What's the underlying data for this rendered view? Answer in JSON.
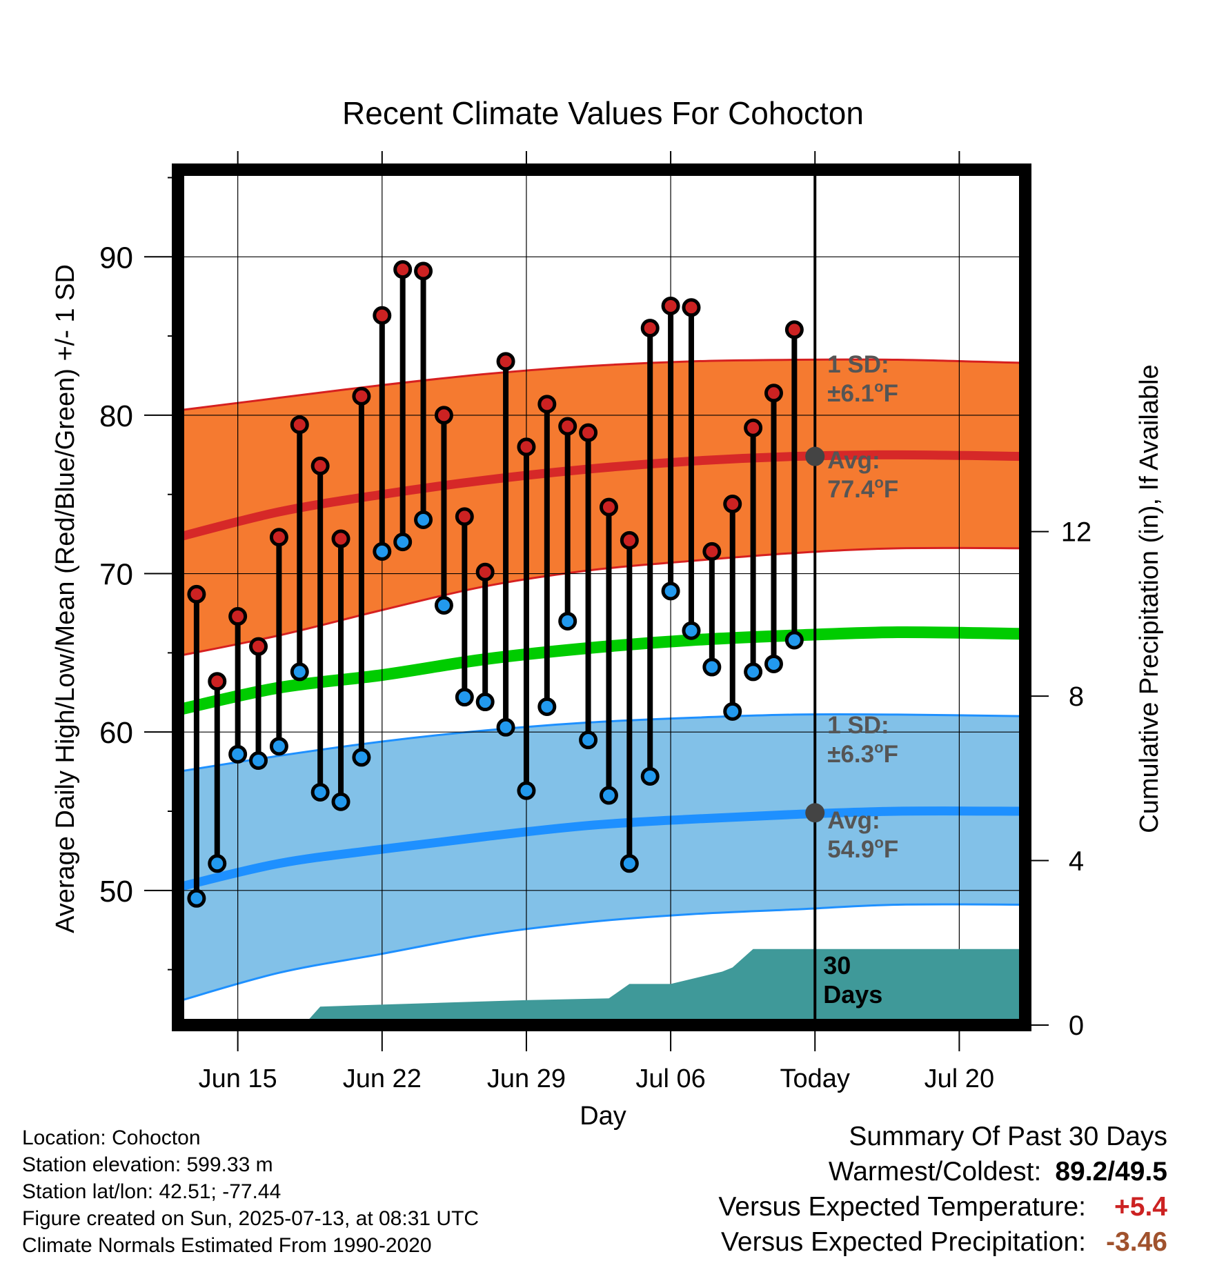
{
  "chart_data": {
    "type": "line",
    "title": "Recent Climate Values For Cohocton",
    "xlabel": "Day",
    "ylabel": "Average Daily High/Low/Mean (Red/Blue/Green) +/- 1 SD",
    "y2label": "Cumulative Precipitation (in), If Available",
    "ylim": [
      41.5,
      95.5
    ],
    "y_ticks": [
      50,
      60,
      70,
      80,
      90
    ],
    "y2lim": [
      0,
      20.8
    ],
    "y2_ticks": [
      0,
      4,
      8,
      12
    ],
    "xlim": [
      -0.9,
      40.2
    ],
    "x_ticks": [
      {
        "day": 2,
        "label": "Jun 15"
      },
      {
        "day": 9,
        "label": "Jun 22"
      },
      {
        "day": 16,
        "label": "Jun 29"
      },
      {
        "day": 23,
        "label": "Jul 06"
      },
      {
        "day": 30,
        "label": "Today"
      },
      {
        "day": 37,
        "label": "Jul 20"
      }
    ],
    "today_day": 30,
    "period_label": "30 Days",
    "grid": true,
    "days": [
      -1,
      0,
      1,
      2,
      3,
      4,
      5,
      6,
      7,
      8,
      9,
      10,
      11,
      12,
      13,
      14,
      15,
      16,
      17,
      18,
      19,
      20,
      21,
      22,
      23,
      24,
      25,
      26,
      27,
      28,
      29
    ],
    "series": [
      {
        "name": "High",
        "color": "#cc2222",
        "values": [
          68.7,
          63.2,
          67.3,
          65.4,
          72.3,
          79.4,
          76.8,
          72.2,
          81.2,
          86.3,
          89.2,
          89.1,
          80.0,
          73.6,
          70.1,
          83.4,
          78.0,
          80.7,
          79.3,
          78.9,
          74.2,
          72.1,
          85.5,
          86.9,
          86.8,
          71.4,
          74.4,
          79.2,
          81.4,
          85.4
        ],
        "days": [
          0,
          1,
          2,
          3,
          4,
          5,
          6,
          7,
          8,
          9,
          10,
          11,
          12,
          13,
          14,
          15,
          16,
          17,
          18,
          19,
          20,
          21,
          22,
          23,
          24,
          25,
          26,
          27,
          28,
          29
        ]
      },
      {
        "name": "Low",
        "color": "#2299ee",
        "values": [
          49.5,
          51.7,
          58.6,
          58.2,
          59.1,
          63.8,
          56.2,
          55.6,
          58.4,
          71.4,
          72.0,
          73.4,
          68.0,
          62.2,
          61.9,
          60.3,
          56.3,
          61.6,
          67.0,
          59.5,
          56.0,
          51.7,
          57.2,
          68.9,
          66.4,
          64.1,
          61.3,
          63.8,
          64.3,
          65.8
        ],
        "days": [
          0,
          1,
          2,
          3,
          4,
          5,
          6,
          7,
          8,
          9,
          10,
          11,
          12,
          13,
          14,
          15,
          16,
          17,
          18,
          19,
          20,
          21,
          22,
          23,
          24,
          25,
          26,
          27,
          28,
          29
        ]
      }
    ],
    "normals": {
      "x": [
        -0.9,
        4,
        9,
        14,
        19,
        24,
        29,
        34,
        40.2
      ],
      "high_upper": [
        80.3,
        81.1,
        81.9,
        82.6,
        83.1,
        83.4,
        83.5,
        83.5,
        83.3
      ],
      "high_avg": [
        72.3,
        73.9,
        75.0,
        75.9,
        76.6,
        77.1,
        77.4,
        77.5,
        77.4
      ],
      "high_lower": [
        64.8,
        66.1,
        67.7,
        69.2,
        70.2,
        70.8,
        71.3,
        71.6,
        71.6
      ],
      "mean_avg": [
        61.4,
        62.8,
        63.6,
        64.6,
        65.3,
        65.8,
        66.1,
        66.3,
        66.2
      ],
      "low_upper": [
        57.5,
        58.5,
        59.4,
        60.1,
        60.6,
        60.9,
        61.1,
        61.1,
        61.0
      ],
      "low_avg": [
        50.2,
        51.7,
        52.6,
        53.4,
        54.1,
        54.5,
        54.8,
        55.0,
        55.0
      ],
      "low_lower": [
        43.0,
        44.8,
        46.0,
        47.2,
        48.0,
        48.5,
        48.8,
        49.1,
        49.1
      ]
    },
    "precip": {
      "color": "#3f9999",
      "x": [
        5.2,
        6,
        15.5,
        20,
        21,
        23,
        25.5,
        26,
        27,
        40.2
      ],
      "values": [
        0.0,
        0.45,
        0.6,
        0.65,
        1.0,
        1.0,
        1.3,
        1.4,
        1.85,
        1.85
      ]
    },
    "annotations": {
      "high_sd_label": "1 SD:",
      "high_sd_value": "±6.1°F",
      "high_avg_label": "Avg:",
      "high_avg_value": "77.4°F",
      "low_sd_label": "1 SD:",
      "low_sd_value": "±6.3°F",
      "low_avg_label": "Avg:",
      "low_avg_value": "54.9°F",
      "high_avg_marker": 77.4,
      "low_avg_marker": 54.9
    }
  },
  "footer": {
    "location": "Location: Cohocton",
    "elevation": "Station elevation: 599.33 m",
    "latlon": "Station lat/lon: 42.51; -77.44",
    "created": "Figure created on Sun, 2025-07-13, at 08:31 UTC",
    "normals": "Climate Normals Estimated From 1990-2020"
  },
  "summary": {
    "title": "Summary Of Past 30 Days",
    "warmest_coldest_label": "Warmest/Coldest:",
    "warmest_coldest_value": "89.2/49.5",
    "temp_label": "Versus Expected Temperature:",
    "temp_value": "+5.4",
    "temp_color": "#cc2222",
    "precip_label": "Versus Expected Precipitation:",
    "precip_value": "-3.46",
    "precip_color": "#a0522d"
  }
}
